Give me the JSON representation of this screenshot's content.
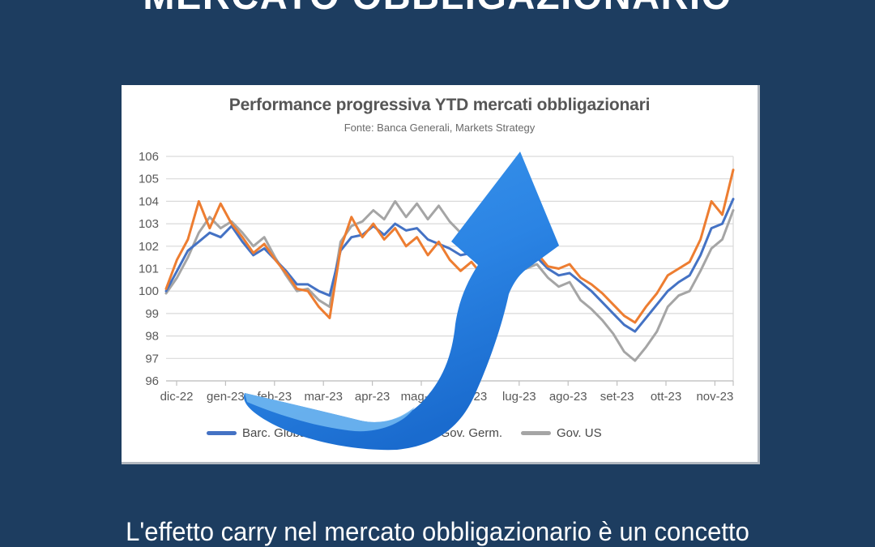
{
  "page": {
    "background_color": "#1d3d60",
    "top_title": "MERCATO OBBLIGAZIONARIO",
    "bottom_text": "L'effetto carry nel mercato obbligazionario è un concetto"
  },
  "chart": {
    "title": "Performance progressiva YTD mercati obbligazionari",
    "subtitle": "Fonte: Banca Generali, Markets Strategy",
    "panel_color": "#ffffff",
    "grid_color": "#d9d9d9",
    "axis_color": "#bfbfbf",
    "label_color": "#595959"
  },
  "arrow_graphic": {
    "name": "3d-curved-up-arrow",
    "color_main": "#2E86E6",
    "color_light": "#62B0F0",
    "color_dark": "#1A6BCE"
  },
  "chart_data": {
    "type": "line",
    "title": "Performance progressiva YTD mercati obbligazionari",
    "subtitle": "Fonte: Banca Generali, Markets Strategy",
    "xlabel": "",
    "ylabel": "",
    "ylim": [
      96,
      106
    ],
    "y_ticks": [
      96,
      97,
      98,
      99,
      100,
      101,
      102,
      103,
      104,
      105,
      106
    ],
    "x_tick_labels": [
      "dic-22",
      "gen-23",
      "feb-23",
      "mar-23",
      "apr-23",
      "mag-23",
      "giu-23",
      "lug-23",
      "ago-23",
      "set-23",
      "ott-23",
      "nov-23"
    ],
    "grid": true,
    "legend_position": "bottom",
    "series": [
      {
        "name": "Barc. Global Agg hdg EUR",
        "color": "#4472C4",
        "values": [
          100.0,
          100.9,
          101.8,
          102.2,
          102.6,
          102.4,
          102.9,
          102.2,
          101.6,
          101.9,
          101.4,
          100.9,
          100.3,
          100.3,
          100.0,
          99.8,
          101.8,
          102.4,
          102.5,
          102.9,
          102.5,
          103.0,
          102.7,
          102.8,
          102.3,
          102.1,
          101.9,
          101.6,
          101.7,
          101.4,
          101.3,
          101.2,
          101.1,
          101.2,
          101.5,
          101.0,
          100.7,
          100.8,
          100.4,
          100.0,
          99.5,
          99.0,
          98.5,
          98.2,
          98.8,
          99.4,
          100.0,
          100.4,
          100.7,
          101.6,
          102.8,
          103.0,
          104.1
        ]
      },
      {
        "name": "Gov. Germ.",
        "color": "#ED7D31",
        "values": [
          100.1,
          101.4,
          102.3,
          104.0,
          102.8,
          103.9,
          103.0,
          102.4,
          101.7,
          102.1,
          101.4,
          100.8,
          100.1,
          100.0,
          99.3,
          98.8,
          101.9,
          103.3,
          102.4,
          103.0,
          102.3,
          102.8,
          102.0,
          102.4,
          101.6,
          102.2,
          101.4,
          100.9,
          101.3,
          100.7,
          101.1,
          100.9,
          100.8,
          101.1,
          101.7,
          101.1,
          101.0,
          101.2,
          100.6,
          100.3,
          99.9,
          99.4,
          98.9,
          98.6,
          99.3,
          99.9,
          100.7,
          101.0,
          101.3,
          102.3,
          104.0,
          103.4,
          105.4
        ]
      },
      {
        "name": "Gov. US",
        "color": "#A5A5A5",
        "values": [
          99.9,
          100.6,
          101.5,
          102.6,
          103.3,
          102.8,
          103.1,
          102.6,
          102.0,
          102.4,
          101.5,
          100.7,
          100.0,
          100.1,
          99.6,
          99.3,
          102.2,
          102.9,
          103.1,
          103.6,
          103.2,
          104.0,
          103.3,
          103.9,
          103.2,
          103.8,
          103.1,
          102.6,
          103.3,
          102.7,
          103.1,
          102.4,
          101.9,
          101.0,
          101.2,
          100.6,
          100.2,
          100.4,
          99.6,
          99.2,
          98.7,
          98.1,
          97.3,
          96.9,
          97.5,
          98.2,
          99.3,
          99.8,
          100.0,
          100.9,
          101.9,
          102.3,
          103.6
        ]
      }
    ]
  }
}
